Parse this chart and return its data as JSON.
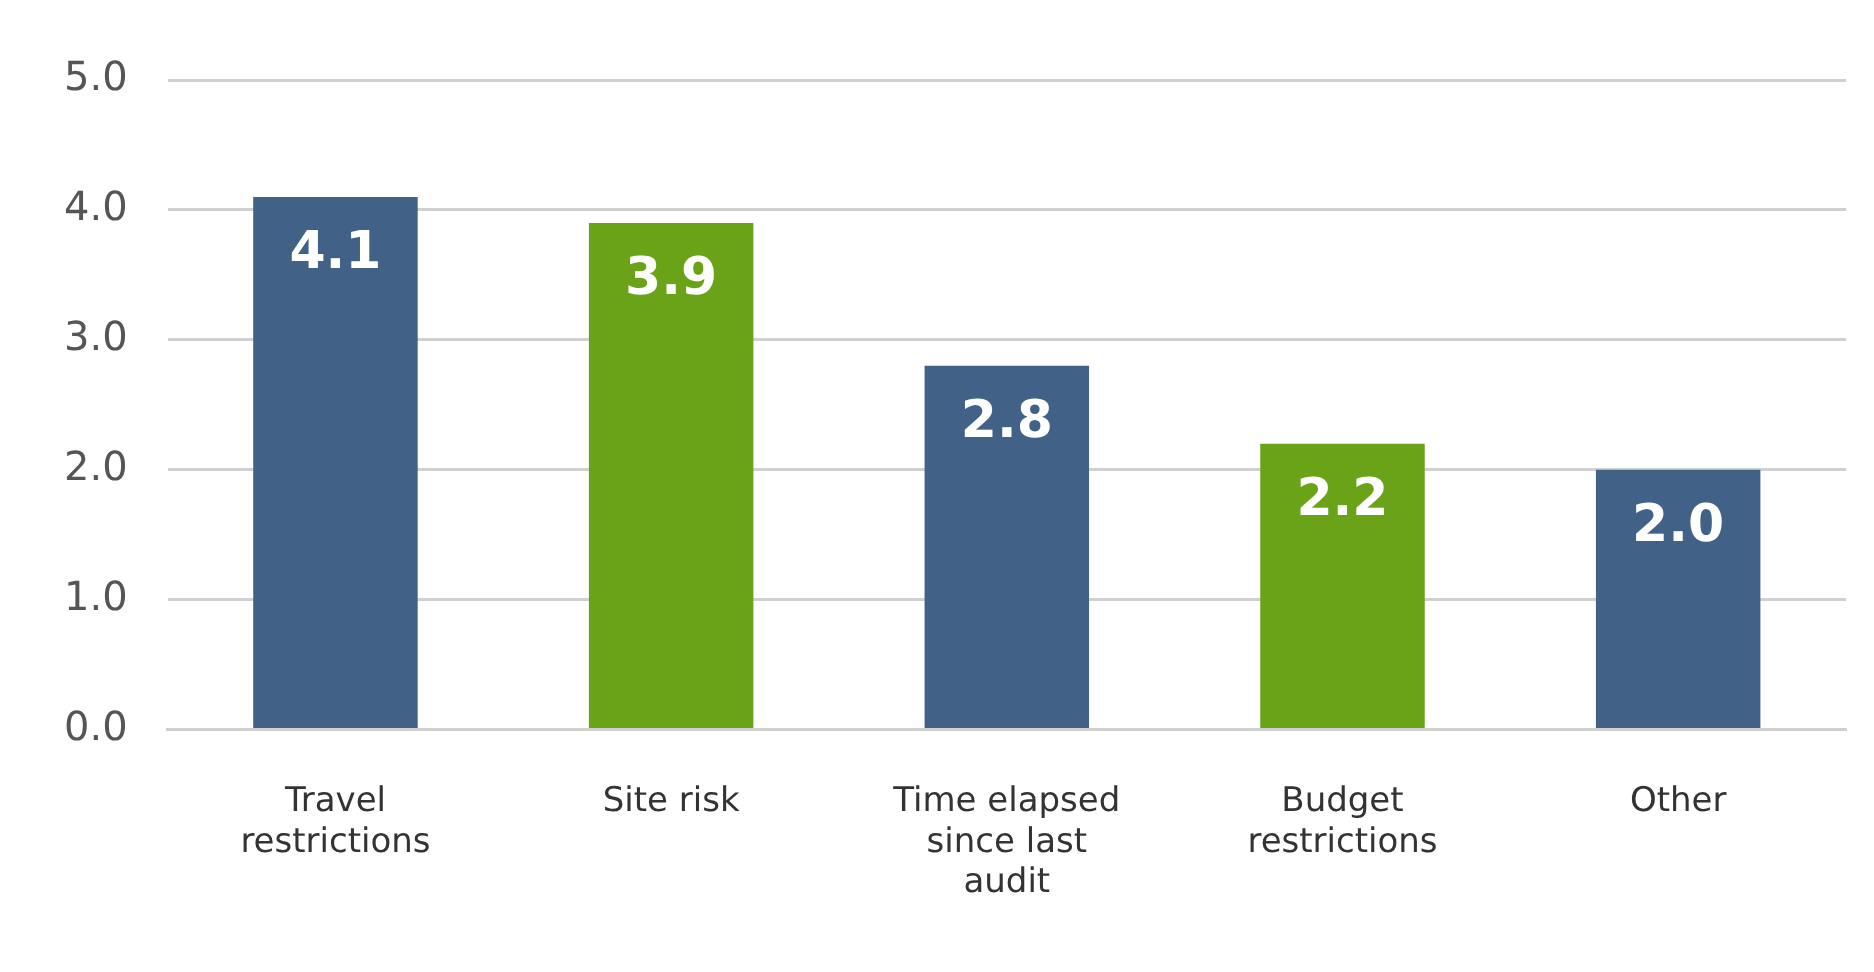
{
  "chart_data": {
    "type": "bar",
    "categories": [
      "Travel restrictions",
      "Site risk",
      "Time elapsed since last audit",
      "Budget restrictions",
      "Other"
    ],
    "values": [
      4.1,
      3.9,
      2.8,
      2.2,
      2.0
    ],
    "value_labels": [
      "4.1",
      "3.9",
      "2.8",
      "2.2",
      "2.0"
    ],
    "colors": [
      "#426186",
      "#6aa318",
      "#426186",
      "#6aa318",
      "#426186"
    ],
    "ylim": [
      0,
      5
    ],
    "yticks": [
      {
        "value": 0,
        "label": "0.0"
      },
      {
        "value": 1,
        "label": "1.0"
      },
      {
        "value": 2,
        "label": "2.0"
      },
      {
        "value": 3,
        "label": "3.0"
      },
      {
        "value": 4,
        "label": "4.0"
      },
      {
        "value": 5,
        "label": "5.0"
      }
    ],
    "grid": "y",
    "legend": false
  }
}
